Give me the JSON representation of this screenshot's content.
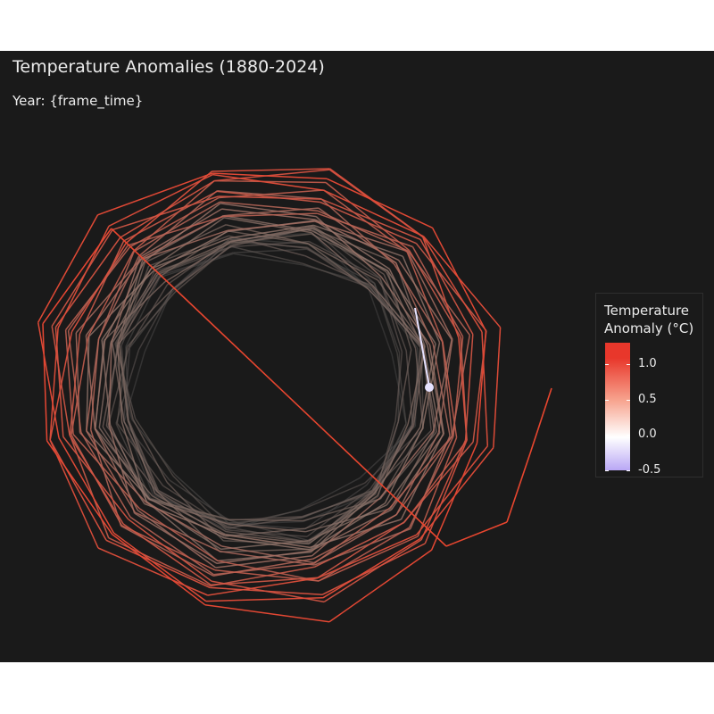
{
  "chart_data": {
    "type": "line",
    "title": "Temperature Anomalies (1880-2024)",
    "subtitle": "Year: {frame_time}",
    "xlabel": "",
    "ylabel": "",
    "legend": {
      "title_line1": "Temperature",
      "title_line2": "Anomaly (°C)",
      "placement": "right",
      "ticks": [
        {
          "value": -0.5,
          "label": "-0.5"
        },
        {
          "value": 0.0,
          "label": "0.0"
        },
        {
          "value": 0.5,
          "label": "0.5"
        },
        {
          "value": 1.0,
          "label": "1.0"
        }
      ],
      "range": [
        -0.5,
        1.3
      ]
    },
    "colors": {
      "cold": "#b9a7f5",
      "neutral": "#ffffff",
      "warm": "#e8372b",
      "background": "#1a1a1a",
      "point": "#e6e2ff"
    },
    "grid": false,
    "axes_visible": false
  }
}
